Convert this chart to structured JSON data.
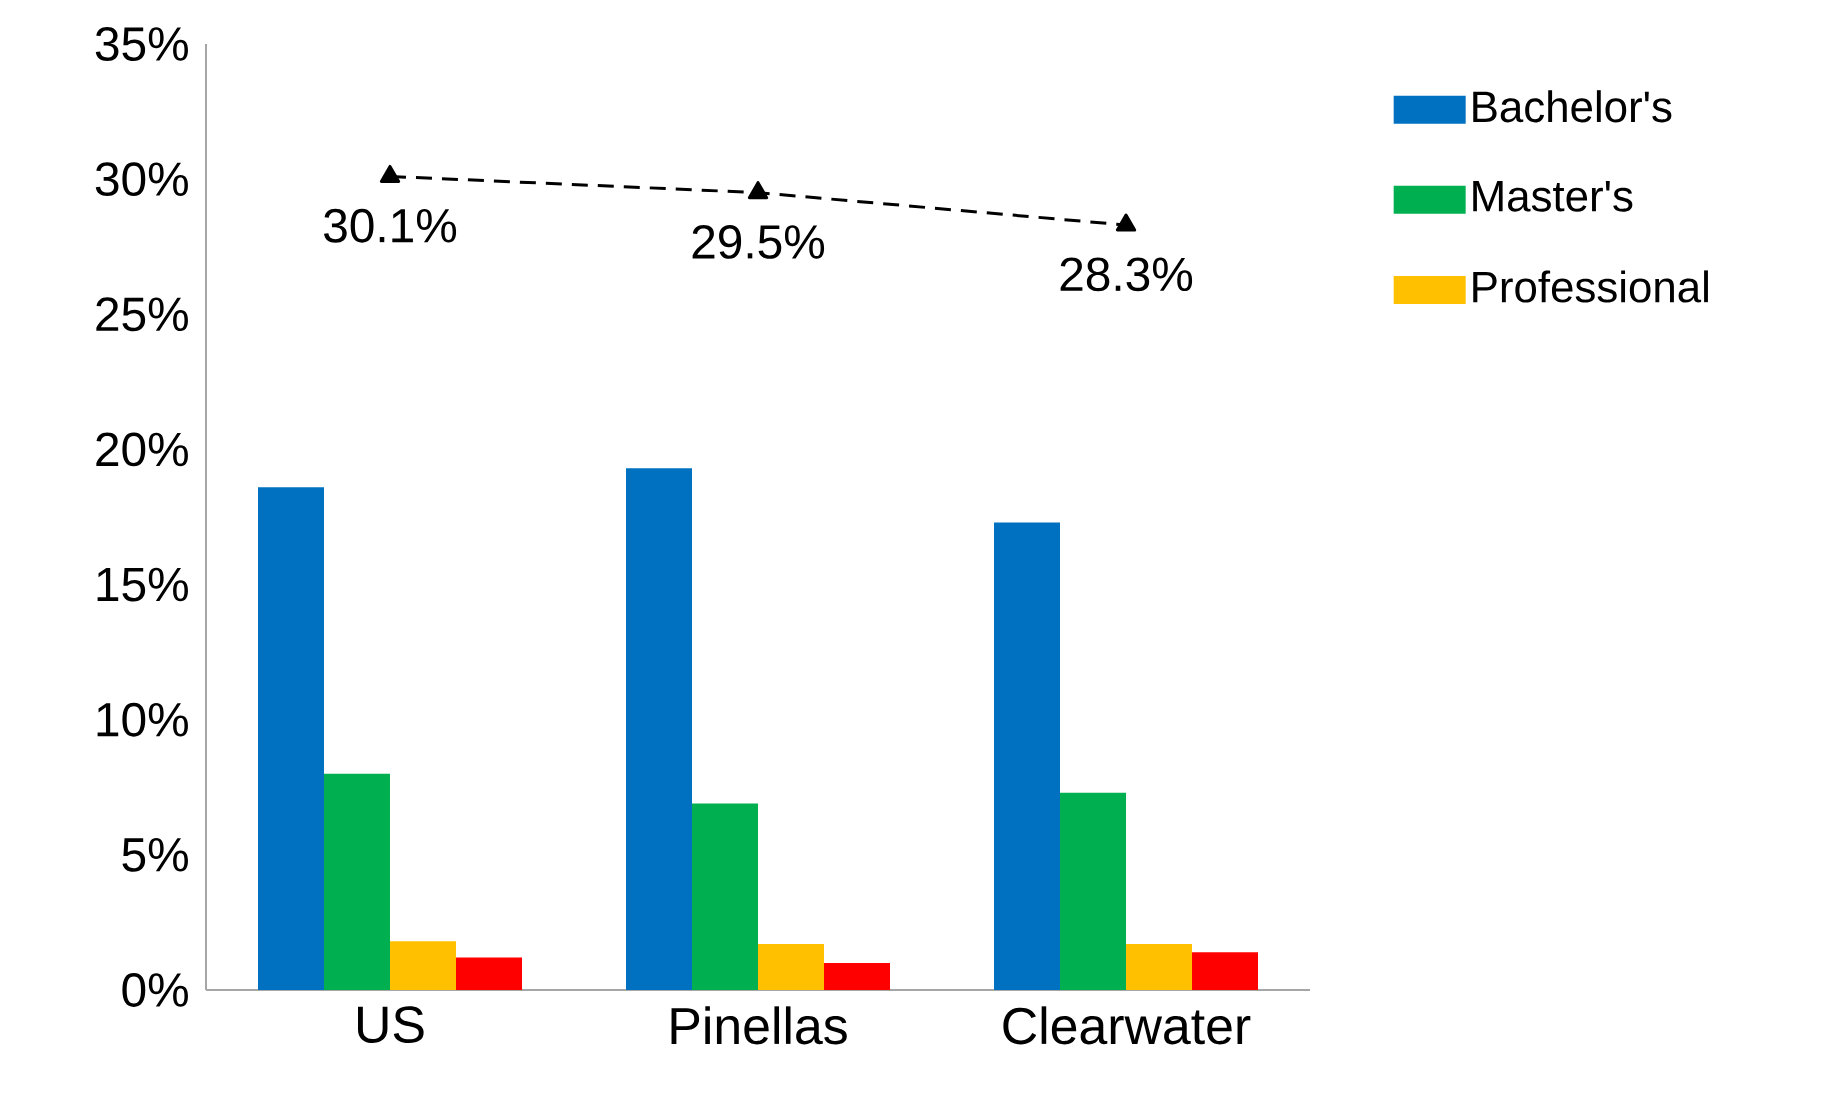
{
  "chart_data": {
    "type": "bar",
    "categories": [
      "US",
      "Pinellas",
      "Clearwater"
    ],
    "series": [
      {
        "name": "Bachelor's",
        "color": "#0070c0",
        "values": [
          18.6,
          19.3,
          17.3
        ]
      },
      {
        "name": "Master's",
        "color": "#00b050",
        "values": [
          8.0,
          6.9,
          7.3
        ]
      },
      {
        "name": "Professional",
        "color": "#ffc000",
        "values": [
          1.8,
          1.7,
          1.7
        ]
      },
      {
        "color": "#ff0000",
        "values": [
          1.2,
          1.0,
          1.4
        ]
      },
      {
        "type": "line",
        "color": "#000000",
        "line_style": "dashed",
        "marker": "triangle",
        "values": [
          30.1,
          29.5,
          28.3
        ],
        "value_labels": [
          "30.1%",
          "29.5%",
          "28.3%"
        ]
      }
    ],
    "ylim": [
      0,
      35
    ],
    "yticks": [
      {
        "value": 0,
        "label": "0%"
      },
      {
        "value": 5,
        "label": "5%"
      },
      {
        "value": 10,
        "label": "10%"
      },
      {
        "value": 15,
        "label": "15%"
      },
      {
        "value": 20,
        "label": "20%"
      },
      {
        "value": 25,
        "label": "25%"
      },
      {
        "value": 30,
        "label": "30%"
      },
      {
        "value": 35,
        "label": "35%"
      }
    ],
    "legend": "right"
  }
}
